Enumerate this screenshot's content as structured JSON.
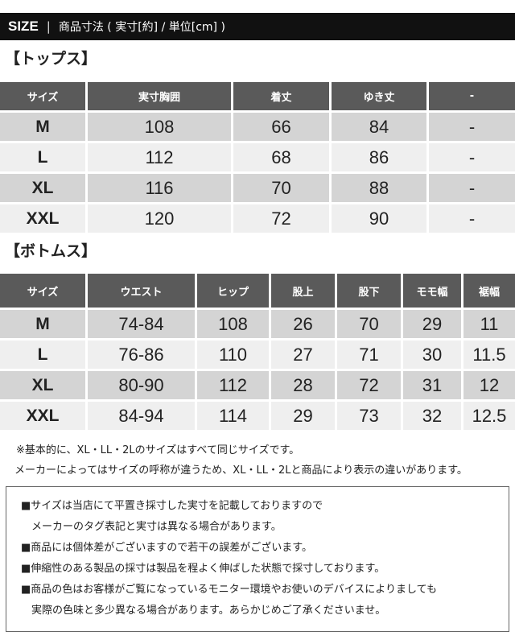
{
  "header": {
    "size_label": "SIZE",
    "separator": "|",
    "subtitle": "商品寸法 ( 実寸[約] / 単位[cm] )"
  },
  "tops": {
    "title": "【トップス】",
    "columns": [
      "サイズ",
      "実寸胸囲",
      "着丈",
      "ゆき丈",
      "-"
    ],
    "rows": [
      [
        "M",
        "108",
        "66",
        "84",
        "-"
      ],
      [
        "L",
        "112",
        "68",
        "86",
        "-"
      ],
      [
        "XL",
        "116",
        "70",
        "88",
        "-"
      ],
      [
        "XXL",
        "120",
        "72",
        "90",
        "-"
      ]
    ]
  },
  "bottoms": {
    "title": "【ボトムス】",
    "columns": [
      "サイズ",
      "ウエスト",
      "ヒップ",
      "股上",
      "股下",
      "モモ幅",
      "裾幅"
    ],
    "rows": [
      [
        "M",
        "74-84",
        "108",
        "26",
        "70",
        "29",
        "11"
      ],
      [
        "L",
        "76-86",
        "110",
        "27",
        "71",
        "30",
        "11.5"
      ],
      [
        "XL",
        "80-90",
        "112",
        "28",
        "72",
        "31",
        "12"
      ],
      [
        "XXL",
        "84-94",
        "114",
        "29",
        "73",
        "32",
        "12.5"
      ]
    ]
  },
  "notes": [
    "※基本的に、XL・LL・2Lのサイズはすべて同じサイズです。",
    "メーカーによってはサイズの呼称が違うため、XL・LL・2Lと商品により表示の違いがあります。"
  ],
  "box": [
    {
      "text": "■サイズは当店にて平置き採寸した実寸を記載しておりますので",
      "cont": false
    },
    {
      "text": "メーカーのタグ表記と実寸は異なる場合があります。",
      "cont": true
    },
    {
      "text": "■商品には個体差がございますので若干の誤差がございます。",
      "cont": false
    },
    {
      "text": "■伸縮性のある製品の採寸は製品を程よく伸ばした状態で採寸しております。",
      "cont": false
    },
    {
      "text": "■商品の色はお客様がご覧になっているモニター環境やお使いのデバイスによりましても",
      "cont": false
    },
    {
      "text": "実際の色味と多少異なる場合があります。あらかじめご了承くださいませ。",
      "cont": true
    }
  ]
}
